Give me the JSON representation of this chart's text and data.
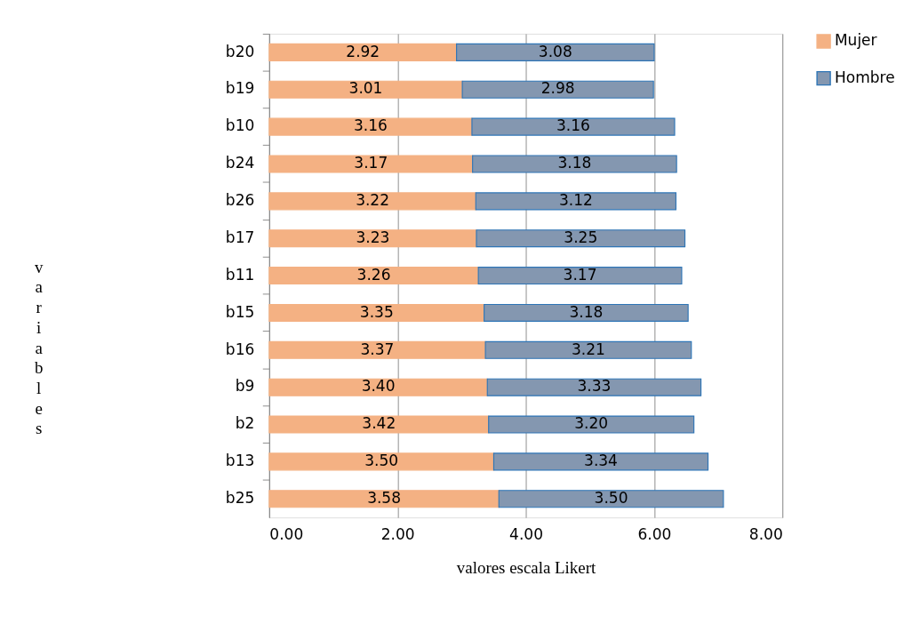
{
  "chart_data": {
    "type": "bar",
    "orientation": "horizontal",
    "stacked": true,
    "categories": [
      "b20",
      "b19",
      "b10",
      "b24",
      "b26",
      "b17",
      "b11",
      "b15",
      "b16",
      "b9",
      "b2",
      "b13",
      "b25"
    ],
    "series": [
      {
        "name": "Mujer",
        "color": "#f4b183",
        "values": [
          2.92,
          3.01,
          3.16,
          3.17,
          3.22,
          3.23,
          3.26,
          3.35,
          3.37,
          3.4,
          3.42,
          3.5,
          3.58
        ],
        "value_labels": [
          "2.92",
          "3.01",
          "3.16",
          "3.17",
          "3.22",
          "3.23",
          "3.26",
          "3.35",
          "3.37",
          "3.40",
          "3.42",
          "3.50",
          "3.58"
        ]
      },
      {
        "name": "Hombre",
        "color": "#8497b0",
        "values": [
          3.08,
          2.98,
          3.16,
          3.18,
          3.12,
          3.25,
          3.17,
          3.18,
          3.21,
          3.33,
          3.2,
          3.34,
          3.5
        ],
        "value_labels": [
          "3.08",
          "2.98",
          "3.16",
          "3.18",
          "3.12",
          "3.25",
          "3.17",
          "3.18",
          "3.21",
          "3.33",
          "3.20",
          "3.34",
          "3.50"
        ]
      }
    ],
    "xlabel": "valores escala Likert",
    "ylabel": "variables",
    "xlim": [
      0,
      8
    ],
    "xticks": [
      {
        "value": 0,
        "label": "0.00"
      },
      {
        "value": 2,
        "label": "2.00"
      },
      {
        "value": 4,
        "label": "4.00"
      },
      {
        "value": 6,
        "label": "6.00"
      },
      {
        "value": 8,
        "label": "8.00"
      }
    ],
    "grid": "x",
    "legend": "right"
  }
}
